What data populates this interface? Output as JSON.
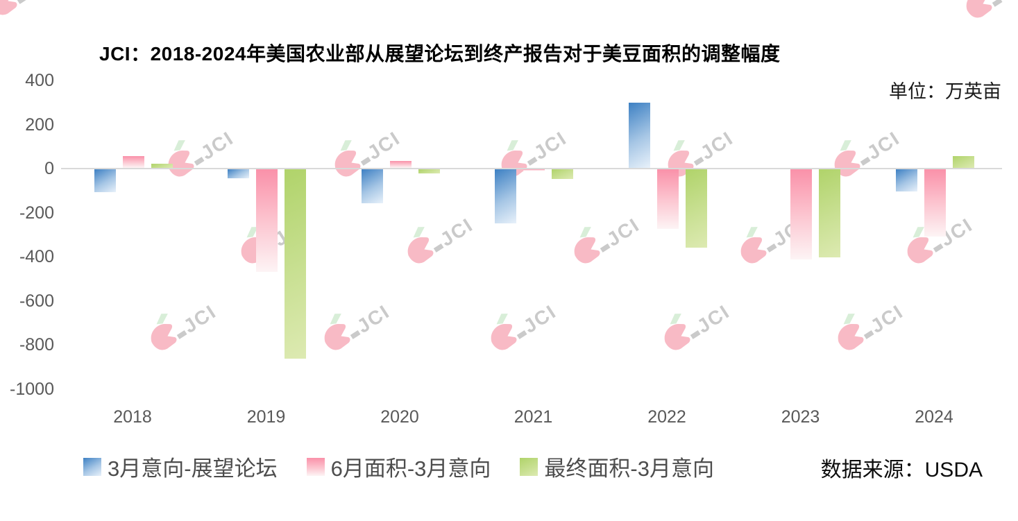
{
  "header": {
    "title": "JCI：2018-2024年美国农业部从展望论坛到终产报告对于美豆面积的调整幅度",
    "unit_label": "单位：万英亩"
  },
  "watermark": {
    "text": "JCI"
  },
  "legend": {
    "items": [
      {
        "label": "3月意向-展望论坛",
        "series": "blue"
      },
      {
        "label": "6月面积-3月意向",
        "series": "pink"
      },
      {
        "label": "最终面积-3月意向",
        "series": "green"
      }
    ]
  },
  "footer": {
    "source_label": "数据来源：USDA"
  },
  "colors": {
    "blue_top": "#3d80c3",
    "blue_bottom": "#e8f1fa",
    "pink_top": "#fa91a9",
    "pink_bottom": "#fdf4f5",
    "green_top": "#b0d36a",
    "green_bottom": "#ddeab2",
    "axis_text": "#595959",
    "zero_line": "#d9d9d9",
    "legend_text": "#4d4d4d",
    "title_text": "#000000"
  },
  "chart_data": {
    "type": "bar",
    "title": "JCI：2018-2024年美国农业部从展望论坛到终产报告对于美豆面积的调整幅度",
    "unit": "万英亩",
    "categories": [
      "2018",
      "2019",
      "2020",
      "2021",
      "2022",
      "2023",
      "2024"
    ],
    "series": [
      {
        "name": "3月意向-展望论坛",
        "color_key": "blue",
        "values": [
          -105,
          -40,
          -155,
          -245,
          295,
          0,
          -100
        ]
      },
      {
        "name": "6月面积-3月意向",
        "color_key": "pink",
        "values": [
          55,
          -465,
          30,
          -5,
          -270,
          -410,
          -305
        ]
      },
      {
        "name": "最终面积-3月意向",
        "color_key": "green",
        "values": [
          20,
          -860,
          -20,
          -45,
          -355,
          -400,
          55
        ]
      }
    ],
    "ylim": [
      -1000,
      400
    ],
    "yticks": [
      400,
      200,
      0,
      -200,
      -400,
      -600,
      -800,
      -1000
    ],
    "xlabel": "",
    "ylabel": "",
    "grid": false,
    "legend_position": "bottom",
    "source": "USDA"
  }
}
